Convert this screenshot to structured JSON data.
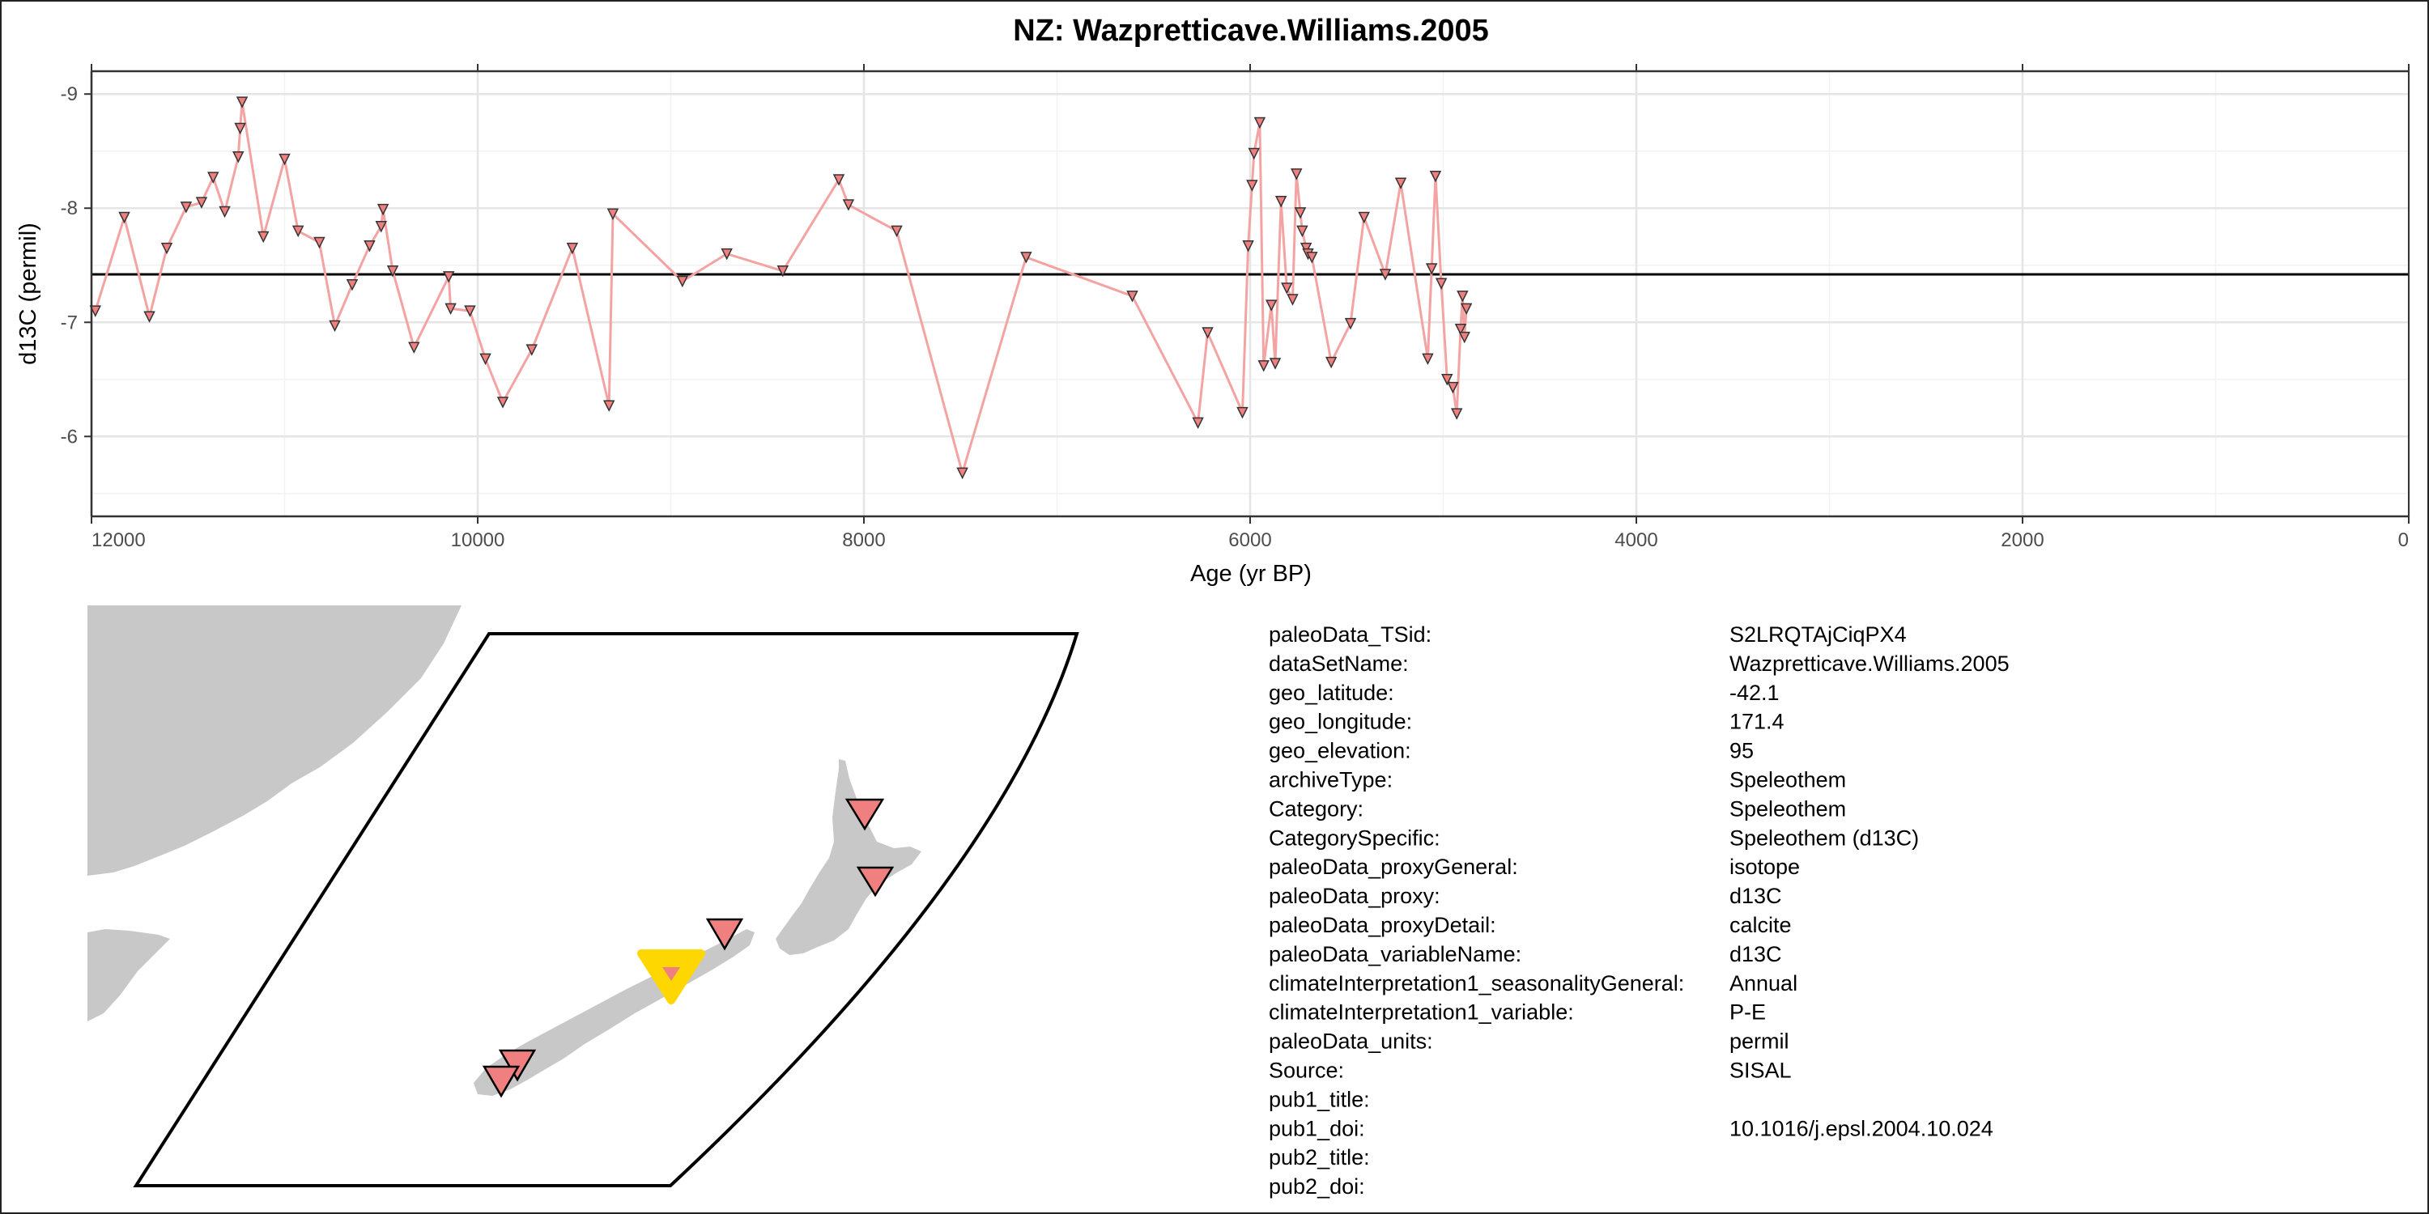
{
  "chart_data": {
    "type": "line",
    "title": "NZ: Wazpretticave.Williams.2005",
    "xlabel": "Age (yr BP)",
    "ylabel": "d13C (permil)",
    "xlim": [
      12000,
      0
    ],
    "ylim": [
      -9.2,
      -5.3
    ],
    "y_reversed": true,
    "x_ticks": [
      12000,
      10000,
      8000,
      6000,
      4000,
      2000,
      0
    ],
    "x_tick_labels": [
      "12000",
      "10000",
      "8000",
      "6000",
      "4000",
      "2000",
      "0"
    ],
    "y_ticks": [
      -9,
      -8,
      -7,
      -6
    ],
    "y_tick_labels": [
      "-9",
      "-8",
      "-7",
      "-6"
    ],
    "grid": true,
    "mean_line": -7.42,
    "series": [
      {
        "marker": "triangle-down",
        "line_color": "#f4a3a3",
        "marker_color": "#f08080",
        "x": [
          11980,
          11830,
          11700,
          11610,
          11510,
          11430,
          11370,
          11310,
          11240,
          11230,
          11220,
          11110,
          11000,
          10930,
          10820,
          10740,
          10650,
          10560,
          10500,
          10490,
          10440,
          10330,
          10150,
          10140,
          10040,
          9960,
          9870,
          9720,
          9510,
          9320,
          9300,
          8940,
          8710,
          8420,
          8130,
          8080,
          7830,
          7490,
          7160,
          6610,
          6270,
          6220,
          6040,
          6010,
          5990,
          5980,
          5950,
          5930,
          5890,
          5870,
          5840,
          5810,
          5780,
          5760,
          5740,
          5730,
          5710,
          5700,
          5680,
          5580,
          5480,
          5410,
          5300,
          5220,
          5080,
          5060,
          5040,
          5010,
          4980,
          4950,
          4930,
          4910,
          4900,
          4890,
          4880
        ],
        "values": [
          -7.1,
          -7.92,
          -7.05,
          -7.65,
          -8.01,
          -8.05,
          -8.27,
          -7.97,
          -8.45,
          -8.7,
          -8.93,
          -7.75,
          -8.43,
          -7.8,
          -7.7,
          -6.97,
          -7.33,
          -7.67,
          -7.84,
          -7.99,
          -7.45,
          -6.78,
          -7.4,
          -7.12,
          -7.1,
          -6.68,
          -6.3,
          -6.76,
          -7.65,
          -6.27,
          -7.95,
          -7.36,
          -7.6,
          -7.45,
          -8.25,
          -8.03,
          -7.8,
          -5.68,
          -7.57,
          -7.23,
          -6.12,
          -6.91,
          -6.21,
          -7.67,
          -8.2,
          -8.48,
          -8.75,
          -6.62,
          -7.15,
          -6.64,
          -8.06,
          -7.3,
          -7.2,
          -8.3,
          -7.96,
          -7.8,
          -7.65,
          -7.6,
          -7.57,
          -6.65,
          -6.99,
          -7.92,
          -7.42,
          -8.22,
          -6.68,
          -7.47,
          -8.28,
          -7.34,
          -6.5,
          -6.43,
          -6.2,
          -6.94,
          -7.23,
          -6.87,
          -7.12
        ]
      }
    ]
  },
  "map": {
    "highlight_color": "#ffd700",
    "marker_color": "#f08080",
    "land_color": "#c8c8c8"
  },
  "metadata": {
    "rows": [
      {
        "key": "paleoData_TSid:",
        "value": "S2LRQTAjCiqPX4"
      },
      {
        "key": "dataSetName:",
        "value": "Wazpretticave.Williams.2005"
      },
      {
        "key": "geo_latitude:",
        "value": "-42.1"
      },
      {
        "key": "geo_longitude:",
        "value": "171.4"
      },
      {
        "key": "geo_elevation:",
        "value": "95"
      },
      {
        "key": "archiveType:",
        "value": "Speleothem"
      },
      {
        "key": "Category:",
        "value": "Speleothem"
      },
      {
        "key": "CategorySpecific:",
        "value": "Speleothem (d13C)"
      },
      {
        "key": "paleoData_proxyGeneral:",
        "value": "isotope"
      },
      {
        "key": "paleoData_proxy:",
        "value": "d13C"
      },
      {
        "key": "paleoData_proxyDetail:",
        "value": "calcite"
      },
      {
        "key": "paleoData_variableName:",
        "value": "d13C"
      },
      {
        "key": "climateInterpretation1_seasonalityGeneral:",
        "value": "Annual"
      },
      {
        "key": "climateInterpretation1_variable:",
        "value": "P-E"
      },
      {
        "key": "paleoData_units:",
        "value": "permil"
      },
      {
        "key": "Source:",
        "value": "SISAL"
      },
      {
        "key": "pub1_title:",
        "value": ""
      },
      {
        "key": "pub1_doi:",
        "value": "10.1016/j.epsl.2004.10.024"
      },
      {
        "key": "pub2_title:",
        "value": ""
      },
      {
        "key": "pub2_doi:",
        "value": ""
      }
    ]
  }
}
